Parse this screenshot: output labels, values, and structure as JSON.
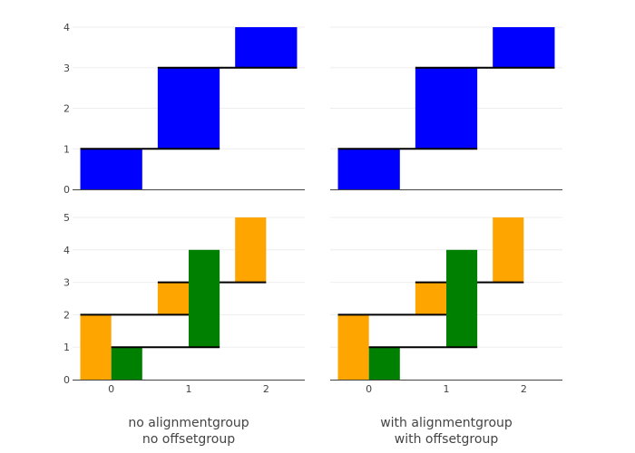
{
  "chart_data": [
    {
      "type": "waterfall",
      "panel": "top-left",
      "x_categories": [
        "0",
        "1",
        "2"
      ],
      "ylim": [
        0,
        4
      ],
      "yticks": [
        0,
        1,
        2,
        3,
        4
      ],
      "grid": true,
      "series": [
        {
          "color": "#0000ff",
          "base": [
            0,
            1,
            3
          ],
          "values": [
            1,
            2,
            1
          ]
        }
      ]
    },
    {
      "type": "waterfall",
      "panel": "top-right",
      "x_categories": [
        "0",
        "1",
        "2"
      ],
      "ylim": [
        0,
        4
      ],
      "yticks": [
        0,
        1,
        2,
        3,
        4
      ],
      "grid": true,
      "series": [
        {
          "color": "#0000ff",
          "base": [
            0,
            1,
            3
          ],
          "values": [
            1,
            2,
            1
          ]
        }
      ]
    },
    {
      "type": "waterfall",
      "panel": "bottom-left",
      "x_categories": [
        "0",
        "1",
        "2"
      ],
      "ylim": [
        0,
        5
      ],
      "yticks": [
        0,
        1,
        2,
        3,
        4,
        5
      ],
      "grid": true,
      "series": [
        {
          "color": "#ffa500",
          "base": [
            0,
            2,
            3
          ],
          "values": [
            2,
            1,
            2
          ]
        },
        {
          "color": "#008000",
          "base": [
            0,
            1
          ],
          "values": [
            1,
            3
          ]
        }
      ],
      "caption": [
        "no alignmentgroup",
        "no offsetgroup"
      ]
    },
    {
      "type": "waterfall",
      "panel": "bottom-right",
      "x_categories": [
        "0",
        "1",
        "2"
      ],
      "ylim": [
        0,
        5
      ],
      "yticks": [
        0,
        1,
        2,
        3,
        4,
        5
      ],
      "grid": true,
      "series": [
        {
          "color": "#ffa500",
          "base": [
            0,
            2,
            3
          ],
          "values": [
            2,
            1,
            2
          ]
        },
        {
          "color": "#008000",
          "base": [
            0,
            1
          ],
          "values": [
            1,
            3
          ]
        }
      ],
      "caption": [
        "with alignmentgroup",
        "with offsetgroup"
      ]
    }
  ]
}
